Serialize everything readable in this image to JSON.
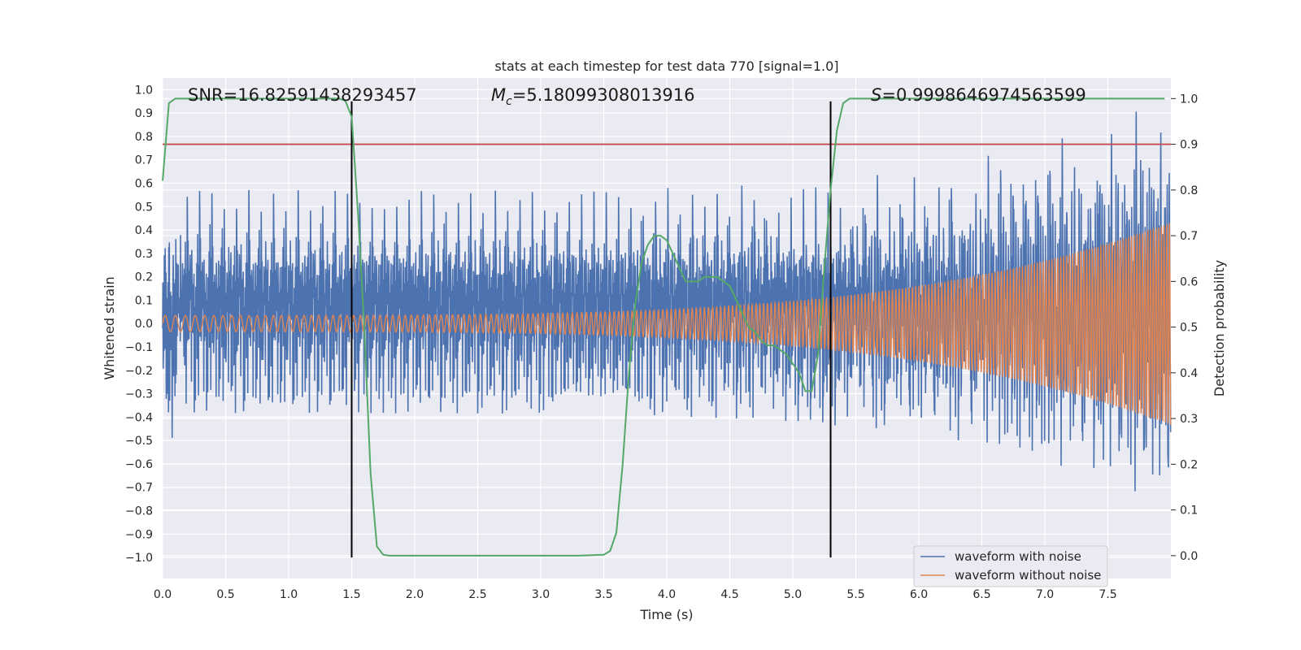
{
  "chart_data": {
    "type": "line",
    "title": "stats at each timestep for test data 770 [signal=1.0]",
    "xlabel": "Time (s)",
    "ylabel": "Whitened strain",
    "y2label": "Detection probability",
    "xlim": [
      0.0,
      8.0
    ],
    "ylim": [
      -1.09,
      1.05
    ],
    "y2lim": [
      -0.05,
      1.045
    ],
    "x_ticks": [
      0.0,
      0.5,
      1.0,
      1.5,
      2.0,
      2.5,
      3.0,
      3.5,
      4.0,
      4.5,
      5.0,
      5.5,
      6.0,
      6.5,
      7.0,
      7.5
    ],
    "x_tick_labels": [
      "0.0",
      "0.5",
      "1.0",
      "1.5",
      "2.0",
      "2.5",
      "3.0",
      "3.5",
      "4.0",
      "4.5",
      "5.0",
      "5.5",
      "6.0",
      "6.5",
      "7.0",
      "7.5"
    ],
    "y_ticks": [
      1.0,
      0.9,
      0.8,
      0.7,
      0.6,
      0.5,
      0.4,
      0.3,
      0.2,
      0.1,
      0.0,
      -0.1,
      -0.2,
      -0.3,
      -0.4,
      -0.5,
      -0.6,
      -0.7,
      -0.8,
      -0.9,
      -1.0
    ],
    "y_tick_labels": [
      "1.0",
      "0.9",
      "0.8",
      "0.7",
      "0.6",
      "0.5",
      "0.4",
      "0.3",
      "0.2",
      "0.1",
      "0.0",
      "−0.1",
      "−0.2",
      "−0.3",
      "−0.4",
      "−0.5",
      "−0.6",
      "−0.7",
      "−0.8",
      "−0.9",
      "−1.0"
    ],
    "y2_ticks": [
      1.0,
      0.9,
      0.8,
      0.7,
      0.6,
      0.5,
      0.4,
      0.3,
      0.2,
      0.1,
      0.0
    ],
    "y2_tick_labels": [
      "1.0",
      "0.9",
      "0.8",
      "0.7",
      "0.6",
      "0.5",
      "0.4",
      "0.3",
      "0.2",
      "0.1",
      "0.0"
    ],
    "grid": true,
    "annotations": {
      "snr": "SNR=16.82591438293457",
      "mc_symbol": "M",
      "mc_sub": "c",
      "mc_value": "=5.18099308013916",
      "s_symbol": "S",
      "s_value": "=0.9998646974563599"
    },
    "threshold": {
      "axis": "y2",
      "value": 0.9,
      "color": "#c44e52"
    },
    "vlines": [
      1.5,
      5.3
    ],
    "detection_probability": {
      "name": "",
      "color": "#55a868",
      "x": [
        0.0,
        0.05,
        0.1,
        0.15,
        0.2,
        0.4,
        0.6,
        0.8,
        1.0,
        1.2,
        1.4,
        1.45,
        1.5,
        1.55,
        1.6,
        1.65,
        1.7,
        1.75,
        1.8,
        2.0,
        2.5,
        3.0,
        3.3,
        3.5,
        3.55,
        3.6,
        3.65,
        3.7,
        3.75,
        3.8,
        3.85,
        3.9,
        3.95,
        4.0,
        4.05,
        4.1,
        4.15,
        4.2,
        4.25,
        4.3,
        4.35,
        4.4,
        4.45,
        4.5,
        4.55,
        4.6,
        4.65,
        4.7,
        4.75,
        4.8,
        4.85,
        4.9,
        4.95,
        5.0,
        5.05,
        5.1,
        5.15,
        5.2,
        5.25,
        5.3,
        5.35,
        5.4,
        5.45,
        5.5,
        5.6,
        6.0,
        7.0,
        7.95
      ],
      "values": [
        0.82,
        0.99,
        1.0,
        1.0,
        1.0,
        1.0,
        1.0,
        1.0,
        1.0,
        1.0,
        1.0,
        0.995,
        0.96,
        0.75,
        0.5,
        0.18,
        0.02,
        0.002,
        0.0,
        0.0,
        0.0,
        0.0,
        0.0,
        0.002,
        0.01,
        0.05,
        0.2,
        0.4,
        0.55,
        0.64,
        0.68,
        0.7,
        0.7,
        0.69,
        0.66,
        0.63,
        0.6,
        0.6,
        0.6,
        0.61,
        0.61,
        0.61,
        0.6,
        0.59,
        0.56,
        0.53,
        0.5,
        0.49,
        0.47,
        0.46,
        0.46,
        0.45,
        0.44,
        0.42,
        0.4,
        0.36,
        0.36,
        0.44,
        0.63,
        0.8,
        0.93,
        0.99,
        1.0,
        1.0,
        1.0,
        1.0,
        1.0,
        1.0
      ]
    },
    "series": [
      {
        "name": "waveform with noise",
        "color": "#4c72b0",
        "description_values": "noisy whitened strain, amplitude ~0.5, peaks to ±1.0"
      },
      {
        "name": "waveform without noise",
        "color": "#dd8452",
        "description_values": "chirp, amplitude 0.05 at t=0 growing to 0.45 at t=8"
      }
    ],
    "legend": {
      "placement": "lower-right",
      "entries": [
        "waveform with noise",
        "waveform without noise"
      ]
    }
  }
}
